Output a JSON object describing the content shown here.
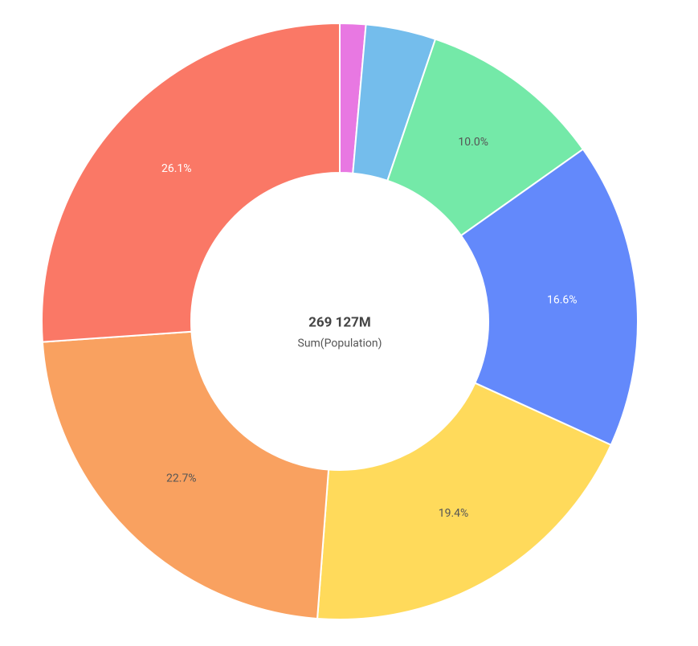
{
  "chart_data": {
    "type": "donut",
    "center_value": "269 127M",
    "center_label": "Sum(Population)",
    "values": [
      1.4,
      3.8,
      10.0,
      16.6,
      19.4,
      22.7,
      26.1
    ],
    "value_labels": [
      null,
      null,
      "10.0%",
      "16.6%",
      "19.4%",
      "22.7%",
      "26.1%"
    ],
    "colors": [
      "#e878e2",
      "#74bdec",
      "#74e9a8",
      "#6389fb",
      "#ffda5b",
      "#f9a160",
      "#fa7866"
    ]
  }
}
